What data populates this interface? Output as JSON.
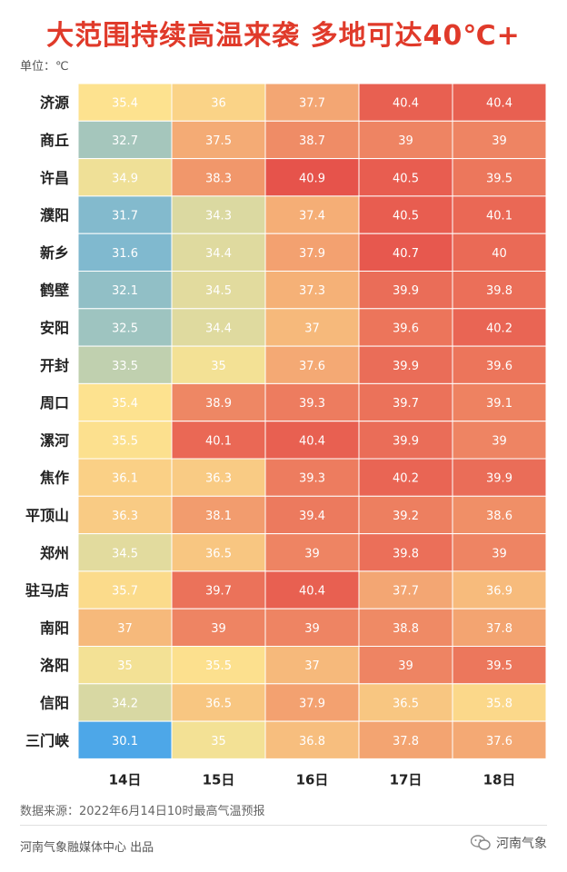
{
  "title": "大范围持续高温来袭 多地可达40℃+",
  "unit_label": "单位：℃",
  "source_text": "数据来源：2022年6月14日10时最高气温预报",
  "producer_text": "河南气象融媒体中心 出品",
  "brand_text": "河南气象",
  "brand_icon": "wechat-icon",
  "colors": {
    "title": "#e03a2a",
    "cool": "#4aa6ea",
    "mid": "#fde590",
    "hot": "#e6504a"
  },
  "chart_data": {
    "type": "heatmap",
    "x_categories": [
      "14日",
      "15日",
      "16日",
      "17日",
      "18日"
    ],
    "y_categories": [
      "济源",
      "商丘",
      "许昌",
      "濮阳",
      "新乡",
      "鹤壁",
      "安阳",
      "开封",
      "周口",
      "漯河",
      "焦作",
      "平顶山",
      "郑州",
      "驻马店",
      "南阳",
      "洛阳",
      "信阳",
      "三门峡"
    ],
    "values": [
      [
        "35.4",
        "36",
        "37.7",
        "40.4",
        "40.4"
      ],
      [
        "32.7",
        "37.5",
        "38.7",
        "39",
        "39"
      ],
      [
        "34.9",
        "38.3",
        "40.9",
        "40.5",
        "39.5"
      ],
      [
        "31.7",
        "34.3",
        "37.4",
        "40.5",
        "40.1"
      ],
      [
        "31.6",
        "34.4",
        "37.9",
        "40.7",
        "40"
      ],
      [
        "32.1",
        "34.5",
        "37.3",
        "39.9",
        "39.8"
      ],
      [
        "32.5",
        "34.4",
        "37",
        "39.6",
        "40.2"
      ],
      [
        "33.5",
        "35",
        "37.6",
        "39.9",
        "39.6"
      ],
      [
        "35.4",
        "38.9",
        "39.3",
        "39.7",
        "39.1"
      ],
      [
        "35.5",
        "40.1",
        "40.4",
        "39.9",
        "39"
      ],
      [
        "36.1",
        "36.3",
        "39.3",
        "40.2",
        "39.9"
      ],
      [
        "36.3",
        "38.1",
        "39.4",
        "39.2",
        "38.6"
      ],
      [
        "34.5",
        "36.5",
        "39",
        "39.8",
        "39"
      ],
      [
        "35.7",
        "39.7",
        "40.4",
        "37.7",
        "36.9"
      ],
      [
        "37",
        "39",
        "39",
        "38.8",
        "37.8"
      ],
      [
        "35",
        "35.5",
        "37",
        "39",
        "39.5"
      ],
      [
        "34.2",
        "36.5",
        "37.9",
        "36.5",
        "35.8"
      ],
      [
        "30.1",
        "35",
        "36.8",
        "37.8",
        "37.6"
      ]
    ]
  }
}
